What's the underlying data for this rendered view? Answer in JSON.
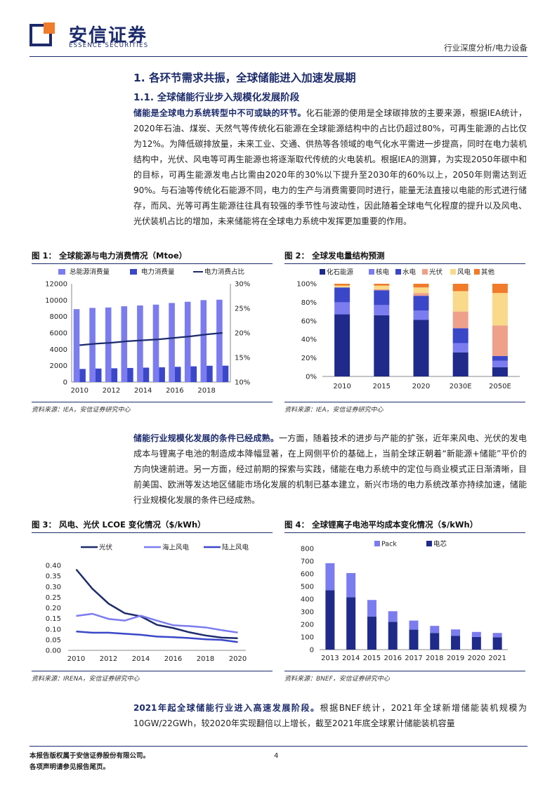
{
  "header": {
    "logo_cn": "安信证券",
    "logo_en": "ESSENCE SECURITIES",
    "section": "行业深度分析/电力设备"
  },
  "section1": {
    "title": "1. 各环节需求共振，全球储能进入加速发展期",
    "sub_title": "1.1. 全球储能行业步入规模化发展阶段",
    "para1_bold": "储能是全球电力系统转型中不可或缺的环节。",
    "para1_text": "化石能源的使用是全球碳排放的主要来源，根据IEA统计，2020年石油、煤炭、天然气等传统化石能源在全球能源结构中的占比仍超过80%，可再生能源的占比仅为12%。为降低碳排放量，未来工业、交通、供热等各领域的电气化水平需进一步提高，同时在电力装机结构中，光伏、风电等可再生能源也将逐渐取代传统的火电装机。根据IEA的测算，为实现2050年碳中和的目标，可再生能源发电占比需由2020年的30%以下提升至2030年的60%以上，2050年则需达到近90%。与石油等传统化石能源不同，电力的生产与消费需要同时进行，能量无法直接以电能的形式进行储存，而风、光等可再生能源往往具有较强的季节性与波动性，因此随着全球电气化程度的提升以及风电、光伏装机占比的增加，未来储能将在全球电力系统中发挥更加重要的作用。",
    "para2_bold": "储能行业规模化发展的条件已经成熟。",
    "para2_text": "一方面，随着技术的进步与产能的扩张，近年来风电、光伏的发电成本与锂离子电池的制造成本降幅显著，在上网侧平价的基础上，当前全球正朝着“新能源+储能”平价的方向快速前进。另一方面，经过前期的探索与实践，储能在电力系统中的定位与商业模式正日渐清晰，目前美国、欧洲等发达地区储能市场化发展的机制已基本建立，新兴市场的电力系统改革亦持续加速，储能行业规模化发展的条件已经成熟。",
    "para3_bold": "2021年起全球储能行业进入高速发展阶段。",
    "para3_text": "根据BNEF统计，2021年全球新增储能装机规模为10GW/22GWh，较2020年实现翻倍以上增长，截至2021年底全球累计储能装机容量"
  },
  "figures": {
    "fig1_title": "图 1：  全球能源与电力消费情况（Mtoe）",
    "fig1_source": "资料来源：IEA，安信证券研究中心",
    "fig2_title": "图 2：  全球发电量结构预测",
    "fig2_source": "资料来源：IEA，安信证券研究中心",
    "fig3_title": "图 3：  风电、光伏 LCOE 变化情况（$/kWh）",
    "fig3_source": "资料来源：IRENA，安信证券研究中心",
    "fig4_title": "图 4：  全球锂离子电池平均成本变化情况（$/kWh）",
    "fig4_source": "资料来源：BNEF，安信证券研究中心"
  },
  "colors": {
    "navy": "#1c2b6b",
    "dark_blue": "#1f2a8a",
    "light_purple": "#7b7cf0",
    "mid_blue": "#3b47c9",
    "salmon": "#eea08a",
    "yellow": "#f9d98a",
    "orange": "#f07b2b"
  },
  "footer": {
    "line1": "本报告版权属于安信证券股份有限公司。",
    "line2": "各项声明请参见报告尾页。",
    "page": "4"
  },
  "chart_data": [
    {
      "type": "bar",
      "id": "fig1",
      "x": [
        2010,
        2011,
        2012,
        2013,
        2014,
        2015,
        2016,
        2017,
        2018,
        2019
      ],
      "xticks": [
        "2010",
        "2012",
        "2014",
        "2016",
        "2018"
      ],
      "series": [
        {
          "name": "总能源消费量",
          "type": "bar",
          "axis": "left",
          "values": [
            8900,
            9050,
            9100,
            9250,
            9350,
            9450,
            9650,
            9800,
            10000,
            10050
          ]
        },
        {
          "name": "电力消费量",
          "type": "bar",
          "axis": "left",
          "values": [
            1600,
            1650,
            1680,
            1720,
            1760,
            1800,
            1860,
            1920,
            1990,
            2000
          ]
        },
        {
          "name": "电力消费占比",
          "type": "line",
          "axis": "right",
          "values": [
            17.5,
            17.8,
            18.0,
            18.3,
            18.5,
            18.7,
            19.0,
            19.3,
            19.7,
            20.0
          ]
        }
      ],
      "ylim": [
        0,
        12000
      ],
      "yticks": [
        0,
        2000,
        4000,
        6000,
        8000,
        10000,
        12000
      ],
      "y2lim": [
        10,
        30
      ],
      "y2ticks": [
        "10%",
        "15%",
        "20%",
        "25%",
        "30%"
      ],
      "legend": "top"
    },
    {
      "type": "bar",
      "id": "fig2",
      "stacked": true,
      "categories": [
        "2010",
        "2015",
        "2020",
        "2030E",
        "2050E"
      ],
      "series": [
        {
          "name": "化石能源",
          "values": [
            67,
            66,
            61,
            26,
            10
          ]
        },
        {
          "name": "核电",
          "values": [
            13,
            11,
            10,
            10,
            7
          ]
        },
        {
          "name": "水电",
          "values": [
            16,
            16,
            16,
            16,
            5
          ]
        },
        {
          "name": "光伏",
          "values": [
            0,
            1,
            3,
            18,
            33
          ]
        },
        {
          "name": "风电",
          "values": [
            2,
            4,
            6,
            22,
            35
          ]
        },
        {
          "name": "其他",
          "values": [
            2,
            2,
            4,
            8,
            10
          ]
        }
      ],
      "ylim": [
        0,
        100
      ],
      "yticks": [
        "0%",
        "20%",
        "40%",
        "60%",
        "80%",
        "100%"
      ],
      "legend": "top"
    },
    {
      "type": "line",
      "id": "fig3",
      "x": [
        2010,
        2011,
        2012,
        2013,
        2014,
        2015,
        2016,
        2017,
        2018,
        2019,
        2020
      ],
      "xticks": [
        "2010",
        "2012",
        "2014",
        "2016",
        "2018",
        "2020"
      ],
      "series": [
        {
          "name": "光伏",
          "values": [
            0.381,
            0.29,
            0.22,
            0.175,
            0.16,
            0.12,
            0.105,
            0.085,
            0.07,
            0.06,
            0.057
          ]
        },
        {
          "name": "海上风电",
          "values": [
            0.162,
            0.172,
            0.148,
            0.14,
            0.163,
            0.14,
            0.118,
            0.114,
            0.108,
            0.095,
            0.084
          ]
        },
        {
          "name": "陆上风电",
          "values": [
            0.089,
            0.083,
            0.083,
            0.078,
            0.073,
            0.065,
            0.062,
            0.058,
            0.052,
            0.049,
            0.039
          ]
        }
      ],
      "ylim": [
        0,
        0.4
      ],
      "yticks": [
        "0.00",
        "0.05",
        "0.10",
        "0.15",
        "0.20",
        "0.25",
        "0.30",
        "0.35",
        "0.40"
      ],
      "legend": "top"
    },
    {
      "type": "bar",
      "id": "fig4",
      "stacked": true,
      "categories": [
        "2013",
        "2014",
        "2015",
        "2016",
        "2017",
        "2018",
        "2019",
        "2020",
        "2021"
      ],
      "series": [
        {
          "name": "电芯",
          "values": [
            470,
            415,
            262,
            220,
            158,
            132,
            110,
            101,
            98
          ]
        },
        {
          "name": "Pack",
          "values": [
            214,
            191,
            131,
            84,
            72,
            56,
            50,
            39,
            34
          ]
        }
      ],
      "ylim": [
        0,
        800
      ],
      "yticks": [
        "0",
        "100",
        "200",
        "300",
        "400",
        "500",
        "600",
        "700",
        "800"
      ],
      "legend": "top"
    }
  ]
}
